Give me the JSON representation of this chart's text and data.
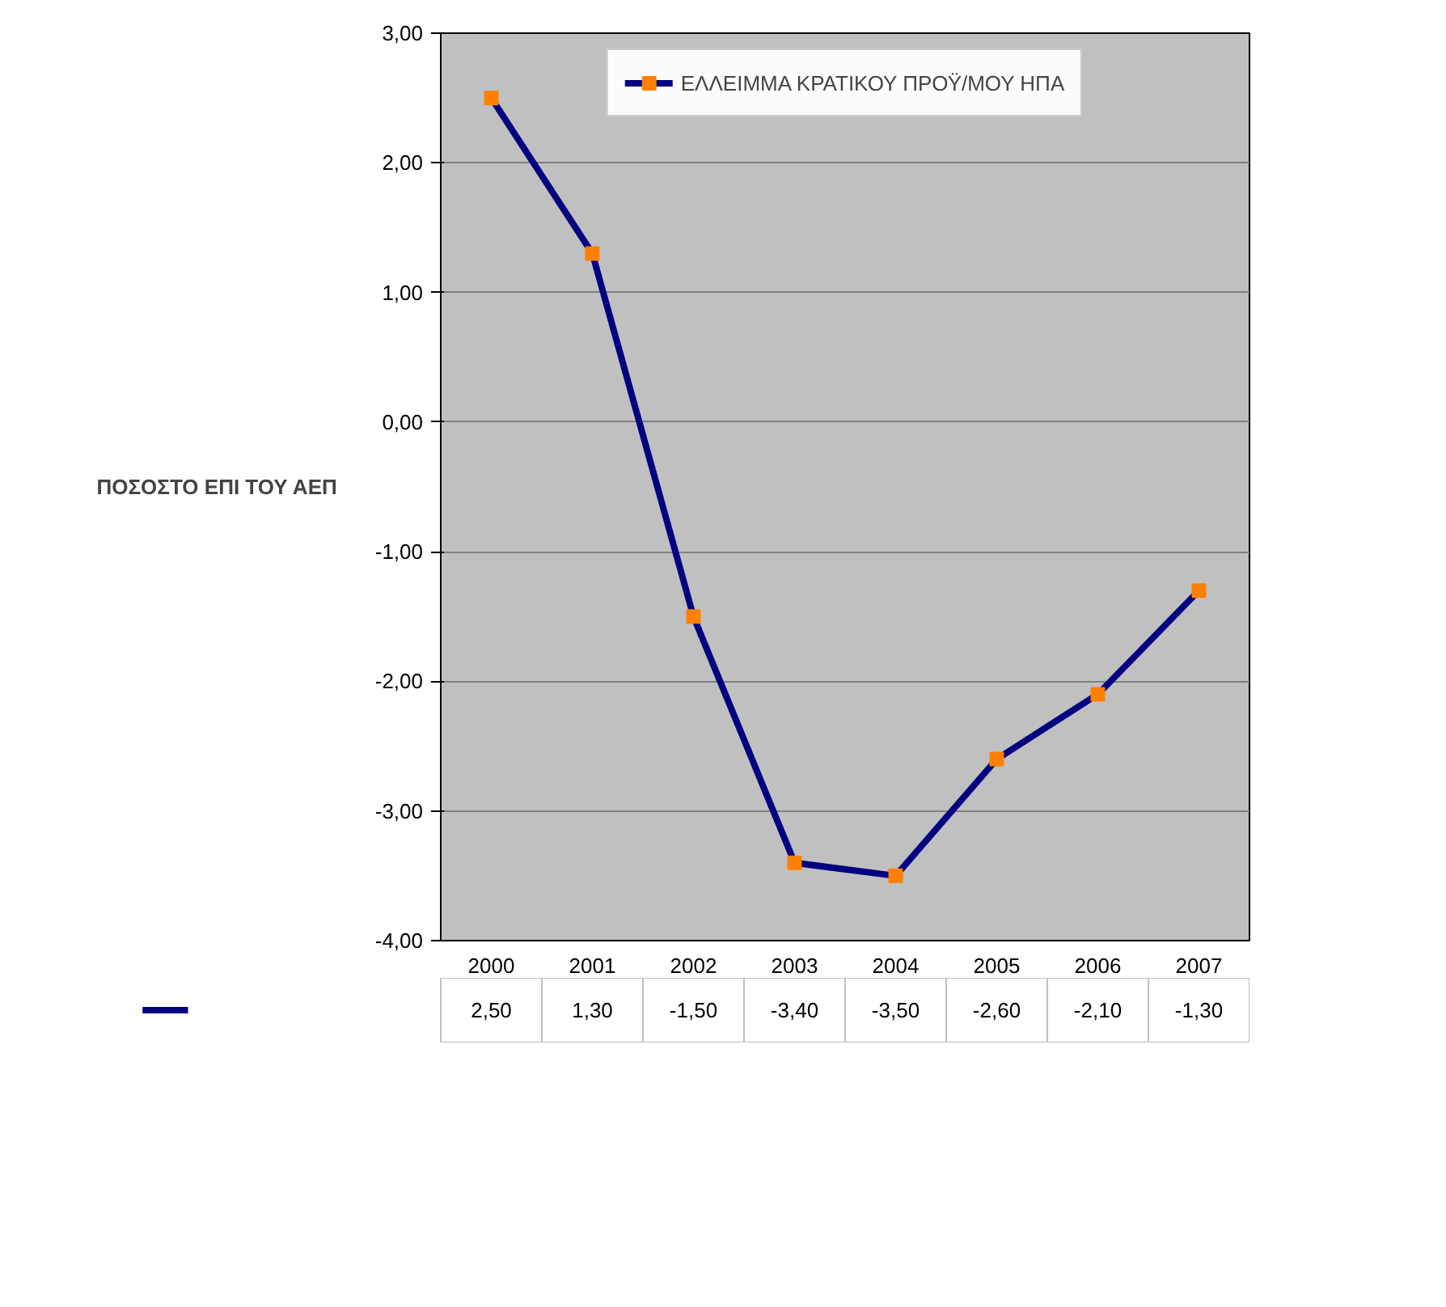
{
  "chart_data": {
    "type": "line",
    "ylabel": "ΠΟΣΟΣΤΟ ΕΠΙ ΤΟΥ ΑΕΠ",
    "categories": [
      "2000",
      "2001",
      "2002",
      "2003",
      "2004",
      "2005",
      "2006",
      "2007"
    ],
    "series": [
      {
        "name": "ΕΛΛΕΙΜΜΑ ΚΡΑΤΙΚΟΥ ΠΡΟΫ/ΜΟΥ ΗΠΑ",
        "color": "#000080",
        "colors": [
          "#ff8000",
          "#ff8000",
          "#ff8000",
          "#ff8000",
          "#ff8000",
          "#ff8000",
          "#ff8000",
          "#ff8000"
        ],
        "values": [
          2.5,
          1.3,
          -1.5,
          -3.4,
          -3.5,
          -2.6,
          -2.1,
          -1.3
        ],
        "value_labels": [
          "2,50",
          "1,30",
          "-1,50",
          "-3,40",
          "-3,50",
          "-2,60",
          "-2,10",
          "-1,30"
        ]
      }
    ],
    "ylim": [
      -4,
      3
    ],
    "yticks": [
      {
        "value": 3,
        "label": "3,00"
      },
      {
        "value": 2,
        "label": "2,00"
      },
      {
        "value": 1,
        "label": "1,00"
      },
      {
        "value": 0,
        "label": "0,00"
      },
      {
        "value": -1,
        "label": "-1,00"
      },
      {
        "value": -2,
        "label": "-2,00"
      },
      {
        "value": -3,
        "label": "-3,00"
      },
      {
        "value": -4,
        "label": "-4,00"
      }
    ],
    "grid": "y",
    "legend": "top",
    "marker": "square",
    "line_style": "solid"
  }
}
